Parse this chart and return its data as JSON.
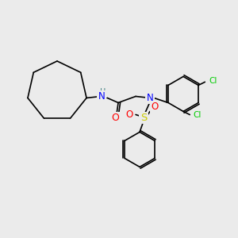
{
  "background_color": "#ebebeb",
  "bond_color": "#000000",
  "atom_colors": {
    "N": "#0000ff",
    "O": "#ff0000",
    "S": "#cccc00",
    "Cl": "#00cc00",
    "H": "#408080"
  },
  "font_size": 7.5,
  "lw": 1.2
}
